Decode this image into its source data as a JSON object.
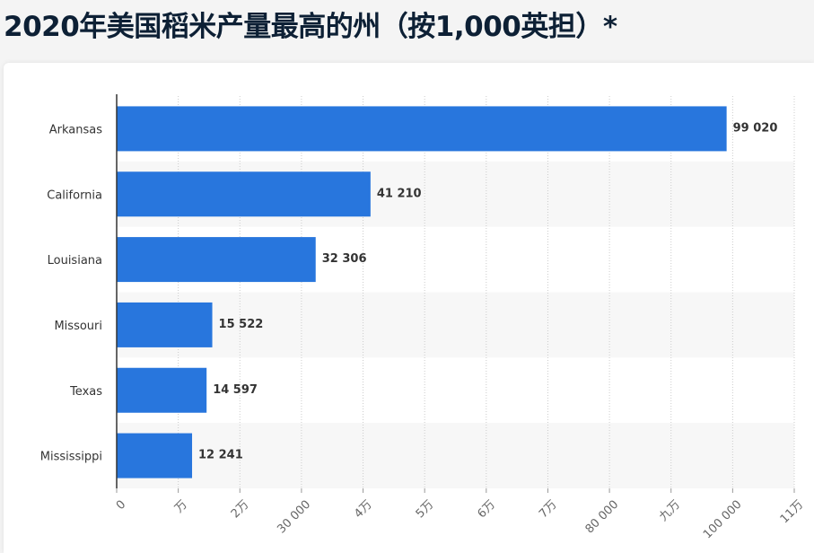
{
  "title": "2020年美国稻米产量最高的州（按1,000英担）*",
  "chart_data": {
    "type": "bar",
    "orientation": "horizontal",
    "title": "2020年美国稻米产量最高的州（按1,000英担）*",
    "categories": [
      "Arkansas",
      "California",
      "Louisiana",
      "Missouri",
      "Texas",
      "Mississippi"
    ],
    "values": [
      99020,
      41210,
      32306,
      15522,
      14597,
      12241
    ],
    "value_labels": [
      "99 020",
      "41 210",
      "32 306",
      "15 522",
      "14 597",
      "12 241"
    ],
    "xlim": [
      0,
      110000
    ],
    "x_ticks": [
      {
        "value": 0,
        "label": "0"
      },
      {
        "value": 10000,
        "label": "万"
      },
      {
        "value": 20000,
        "label": "2万"
      },
      {
        "value": 30000,
        "label": "30 000"
      },
      {
        "value": 40000,
        "label": "4万"
      },
      {
        "value": 50000,
        "label": "5万"
      },
      {
        "value": 60000,
        "label": "6万"
      },
      {
        "value": 70000,
        "label": "7万"
      },
      {
        "value": 80000,
        "label": "80 000"
      },
      {
        "value": 90000,
        "label": "九万"
      },
      {
        "value": 100000,
        "label": "100 000"
      },
      {
        "value": 110000,
        "label": "11万"
      }
    ],
    "grid": true,
    "bar_color": "#2876dd"
  }
}
